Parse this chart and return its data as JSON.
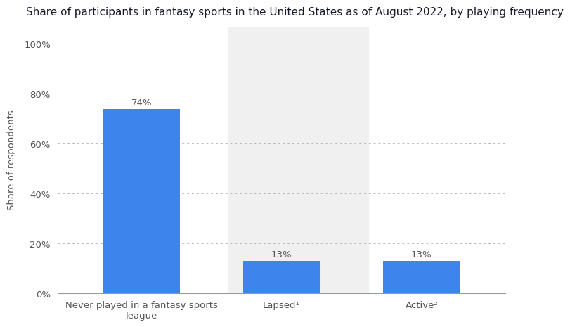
{
  "title": "Share of participants in fantasy sports in the United States as of August 2022, by playing frequency",
  "categories": [
    "Never played in a fantasy sports\nleague",
    "Lapsed¹",
    "Active²"
  ],
  "values": [
    74,
    13,
    13
  ],
  "bar_color": "#3d85ed",
  "highlight_bg_color": "#f0f0f0",
  "ylabel": "Share of respondents",
  "yticks": [
    0,
    20,
    40,
    60,
    80,
    100
  ],
  "ytick_labels": [
    "0%",
    "20%",
    "40%",
    "60%",
    "80%",
    "100%"
  ],
  "ylim": [
    0,
    107
  ],
  "value_labels": [
    "74%",
    "13%",
    "13%"
  ],
  "title_fontsize": 11,
  "label_fontsize": 9.5,
  "tick_fontsize": 9.5,
  "bar_width": 0.55,
  "background_color": "#ffffff",
  "grid_color": "#bbbbbb",
  "title_color": "#1a1a2e",
  "tick_label_color": "#555555",
  "value_label_color": "#555555"
}
